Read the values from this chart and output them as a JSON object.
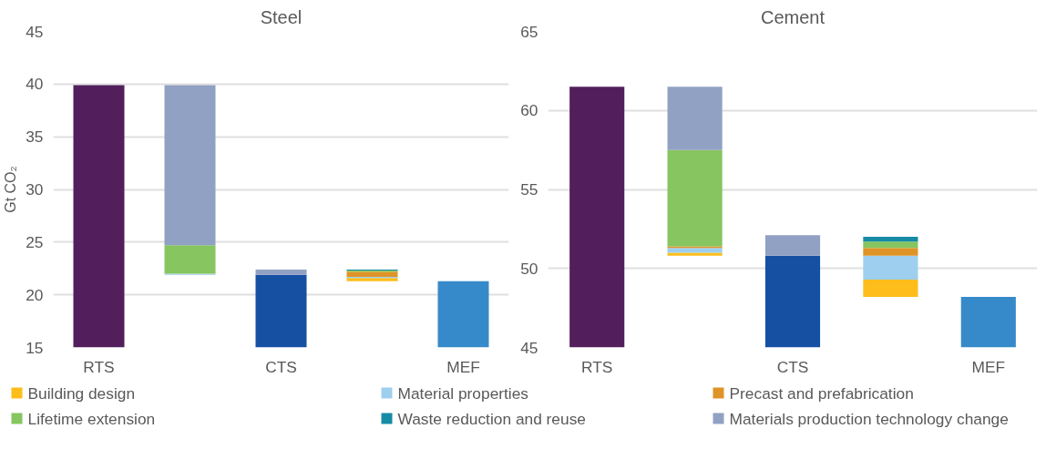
{
  "chart_data": [
    {
      "type": "bar",
      "title": "Steel",
      "ylabel": "Gt CO₂",
      "categories": [
        "RTS",
        null,
        "CTS",
        null,
        "MEF"
      ],
      "ylim": [
        15,
        45
      ],
      "yticks": [
        15,
        20,
        25,
        30,
        35,
        40,
        45
      ],
      "grid": "y",
      "legend": "bottom",
      "series": [
        {
          "colors": [
            "#521f5c",
            null,
            "#1550a2",
            null,
            "#378ac9"
          ],
          "values": [
            39.9,
            null,
            21.9,
            null,
            21.3
          ]
        },
        {
          "name": "Building design",
          "color": "#fdbd1a",
          "base": [
            null,
            null,
            null,
            21.3,
            null
          ],
          "values": [
            null,
            null,
            null,
            0.3,
            null
          ]
        },
        {
          "name": "Material properties",
          "color": "#9ecfee",
          "base": [
            null,
            21.9,
            null,
            21.6,
            null
          ],
          "values": [
            null,
            0.1,
            null,
            0.1,
            null
          ]
        },
        {
          "name": "Precast and prefabrication",
          "color": "#df9427",
          "base": [
            null,
            null,
            null,
            21.7,
            null
          ],
          "values": [
            null,
            null,
            null,
            0.5,
            null
          ]
        },
        {
          "name": "Lifetime extension",
          "color": "#86c55f",
          "base": [
            null,
            22.0,
            null,
            22.2,
            null
          ],
          "values": [
            null,
            2.7,
            null,
            0.1,
            null
          ]
        },
        {
          "name": "Waste reduction and reuse",
          "color": "#168ba6",
          "base": [
            null,
            null,
            null,
            22.3,
            null
          ],
          "values": [
            null,
            null,
            null,
            0.1,
            null
          ]
        },
        {
          "name": "Materials production technology change",
          "color": "#91a1c3",
          "base": [
            null,
            24.7,
            21.9,
            null,
            null
          ],
          "values": [
            null,
            15.2,
            0.5,
            null,
            null
          ]
        }
      ]
    },
    {
      "type": "bar",
      "title": "Cement",
      "categories": [
        "RTS",
        null,
        "CTS",
        null,
        "MEF"
      ],
      "ylim": [
        45,
        65
      ],
      "yticks": [
        45,
        50,
        55,
        60,
        65
      ],
      "grid": "y",
      "series": [
        {
          "colors": [
            "#521f5c",
            null,
            "#1550a2",
            null,
            "#378ac9"
          ],
          "values": [
            61.5,
            null,
            50.8,
            null,
            48.2
          ]
        },
        {
          "color": "#fdbd1a",
          "base": [
            null,
            50.8,
            null,
            48.2,
            null
          ],
          "values": [
            null,
            0.2,
            null,
            1.1,
            null
          ]
        },
        {
          "color": "#9ecfee",
          "base": [
            null,
            51.0,
            null,
            49.3,
            null
          ],
          "values": [
            null,
            0.3,
            null,
            1.5,
            null
          ]
        },
        {
          "color": "#df9427",
          "base": [
            null,
            51.3,
            null,
            50.8,
            null
          ],
          "values": [
            null,
            0.1,
            null,
            0.5,
            null
          ]
        },
        {
          "color": "#86c55f",
          "base": [
            null,
            51.4,
            null,
            51.3,
            null
          ],
          "values": [
            null,
            6.1,
            null,
            0.4,
            null
          ]
        },
        {
          "color": "#168ba6",
          "base": [
            null,
            null,
            null,
            51.7,
            null
          ],
          "values": [
            null,
            null,
            null,
            0.3,
            null
          ]
        },
        {
          "color": "#91a1c3",
          "base": [
            null,
            57.5,
            50.8,
            null,
            null
          ],
          "values": [
            null,
            4.0,
            1.3,
            null,
            null
          ]
        }
      ]
    }
  ]
}
